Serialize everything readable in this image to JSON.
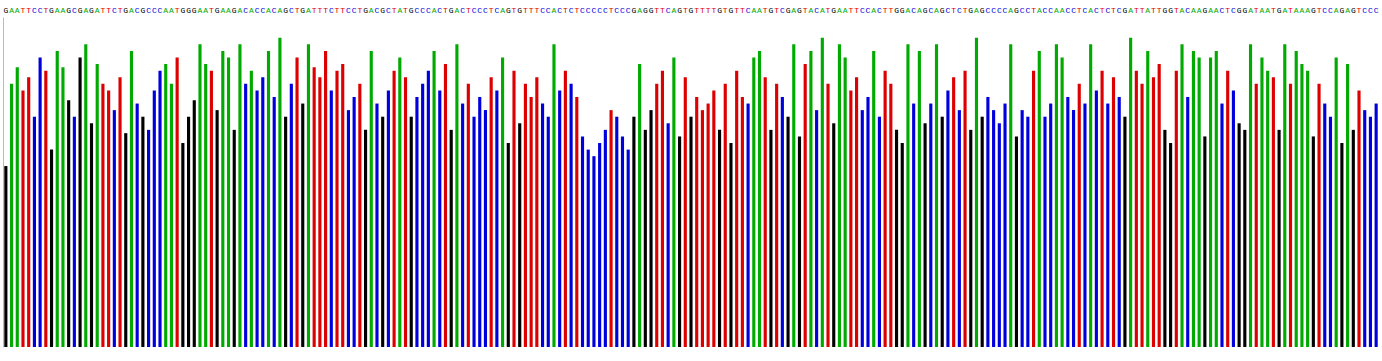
{
  "chart_data": {
    "type": "bar",
    "categories": [
      "G",
      "A",
      "A",
      "T",
      "T",
      "C",
      "C",
      "T",
      "G",
      "A",
      "A",
      "G",
      "C",
      "G",
      "A",
      "G",
      "A",
      "T",
      "T",
      "C",
      "T",
      "G",
      "A",
      "C",
      "G",
      "C",
      "C",
      "C",
      "A",
      "A",
      "T",
      "G",
      "G",
      "G",
      "A",
      "A",
      "T",
      "G",
      "A",
      "A",
      "G",
      "A",
      "C",
      "A",
      "C",
      "C",
      "A",
      "C",
      "A",
      "G",
      "C",
      "T",
      "G",
      "A",
      "T",
      "T",
      "T",
      "C",
      "T",
      "T",
      "C",
      "C",
      "T",
      "G",
      "A",
      "C",
      "G",
      "C",
      "T",
      "A",
      "T",
      "G",
      "C",
      "C",
      "C",
      "A",
      "C",
      "T",
      "G",
      "A",
      "C",
      "T",
      "C",
      "C",
      "C",
      "T",
      "C",
      "A",
      "G",
      "T",
      "G",
      "T",
      "T",
      "T",
      "C",
      "C",
      "A",
      "C",
      "T",
      "C",
      "T",
      "C",
      "C",
      "C",
      "C",
      "C",
      "T",
      "C",
      "C",
      "C",
      "G",
      "A",
      "G",
      "G",
      "T",
      "T",
      "C",
      "A",
      "G",
      "T",
      "G",
      "T",
      "T",
      "T",
      "T",
      "G",
      "T",
      "G",
      "T",
      "T",
      "C",
      "A",
      "A",
      "T",
      "G",
      "T",
      "C",
      "G",
      "A",
      "G",
      "T",
      "A",
      "C",
      "A",
      "T",
      "G",
      "A",
      "A",
      "T",
      "T",
      "C",
      "C",
      "A",
      "C",
      "T",
      "T",
      "G",
      "G",
      "A",
      "C",
      "A",
      "G",
      "C",
      "A",
      "G",
      "C",
      "T",
      "C",
      "T",
      "G",
      "A",
      "G",
      "C",
      "C",
      "C",
      "C",
      "A",
      "G",
      "C",
      "C",
      "T",
      "A",
      "C",
      "C",
      "A",
      "A",
      "C",
      "C",
      "T",
      "C",
      "A",
      "C",
      "T",
      "C",
      "T",
      "C",
      "G",
      "A",
      "T",
      "T",
      "A",
      "T",
      "T",
      "G",
      "G",
      "T",
      "A",
      "C",
      "A",
      "A",
      "G",
      "A",
      "A",
      "C",
      "T",
      "C",
      "G",
      "G",
      "A",
      "T",
      "A",
      "A",
      "T",
      "G",
      "A",
      "T",
      "A",
      "A",
      "A",
      "G",
      "T",
      "C",
      "C",
      "A",
      "G",
      "A",
      "G",
      "T",
      "C",
      "C",
      "C"
    ],
    "values": [
      55,
      80,
      85,
      78,
      82,
      70,
      88,
      84,
      60,
      90,
      85,
      75,
      70,
      88,
      92,
      68,
      86,
      80,
      78,
      72,
      82,
      65,
      90,
      74,
      70,
      66,
      78,
      84,
      86,
      80,
      88,
      62,
      70,
      75,
      92,
      86,
      84,
      72,
      90,
      88,
      66,
      92,
      80,
      84,
      78,
      82,
      90,
      76,
      94,
      70,
      80,
      88,
      74,
      92,
      85,
      82,
      90,
      78,
      84,
      86,
      72,
      76,
      80,
      66,
      90,
      74,
      70,
      78,
      84,
      88,
      82,
      70,
      76,
      80,
      84,
      90,
      78,
      86,
      66,
      92,
      74,
      80,
      70,
      76,
      72,
      82,
      78,
      88,
      62,
      84,
      68,
      80,
      76,
      82,
      74,
      70,
      92,
      78,
      84,
      80,
      76,
      64,
      60,
      58,
      62,
      66,
      72,
      70,
      64,
      60,
      70,
      86,
      66,
      72,
      80,
      84,
      68,
      88,
      64,
      82,
      70,
      76,
      72,
      74,
      78,
      66,
      80,
      62,
      84,
      76,
      74,
      88,
      90,
      82,
      66,
      80,
      76,
      70,
      92,
      64,
      86,
      90,
      72,
      94,
      80,
      68,
      92,
      88,
      78,
      82,
      72,
      76,
      90,
      70,
      84,
      80,
      66,
      62,
      92,
      74,
      90,
      68,
      74,
      92,
      70,
      78,
      82,
      72,
      84,
      66,
      94,
      70,
      76,
      72,
      68,
      74,
      92,
      64,
      72,
      70,
      84,
      90,
      70,
      74,
      92,
      88,
      76,
      72,
      80,
      74,
      92,
      78,
      84,
      74,
      82,
      76,
      70,
      94,
      84,
      80,
      90,
      82,
      86,
      66,
      62,
      84,
      92,
      76,
      90,
      88,
      64,
      88,
      90,
      74,
      84,
      78,
      68,
      66,
      92,
      80,
      88,
      84,
      82,
      66,
      92,
      80,
      90,
      86,
      84,
      64,
      80,
      74,
      70,
      88,
      62,
      86,
      66,
      78,
      72,
      70,
      74
    ],
    "colors": [
      "#000",
      "#0a0",
      "#0a0",
      "#d00",
      "#d00",
      "#00d",
      "#00d",
      "#d00",
      "#000",
      "#0a0",
      "#0a0",
      "#000",
      "#00d",
      "#000",
      "#0a0",
      "#000",
      "#0a0",
      "#d00",
      "#d00",
      "#00d",
      "#d00",
      "#000",
      "#0a0",
      "#00d",
      "#000",
      "#00d",
      "#00d",
      "#00d",
      "#0a0",
      "#0a0",
      "#d00",
      "#000",
      "#000",
      "#000",
      "#0a0",
      "#0a0",
      "#d00",
      "#000",
      "#0a0",
      "#0a0",
      "#000",
      "#0a0",
      "#00d",
      "#0a0",
      "#00d",
      "#00d",
      "#0a0",
      "#00d",
      "#0a0",
      "#000",
      "#00d",
      "#d00",
      "#000",
      "#0a0",
      "#d00",
      "#d00",
      "#d00",
      "#00d",
      "#d00",
      "#d00",
      "#00d",
      "#00d",
      "#d00",
      "#000",
      "#0a0",
      "#00d",
      "#000",
      "#00d",
      "#d00",
      "#0a0",
      "#d00",
      "#000",
      "#00d",
      "#00d",
      "#00d",
      "#0a0",
      "#00d",
      "#d00",
      "#000",
      "#0a0",
      "#00d",
      "#d00",
      "#00d",
      "#00d",
      "#00d",
      "#d00",
      "#00d",
      "#0a0",
      "#000",
      "#d00",
      "#000",
      "#d00",
      "#d00",
      "#d00",
      "#00d",
      "#00d",
      "#0a0",
      "#00d",
      "#d00",
      "#00d",
      "#d00",
      "#00d",
      "#00d",
      "#00d",
      "#00d",
      "#00d",
      "#d00",
      "#00d",
      "#00d",
      "#00d",
      "#000",
      "#0a0",
      "#000",
      "#000",
      "#d00",
      "#d00",
      "#00d",
      "#0a0",
      "#000",
      "#d00",
      "#000",
      "#d00",
      "#d00",
      "#d00",
      "#d00",
      "#000",
      "#d00",
      "#000",
      "#d00",
      "#d00",
      "#00d",
      "#0a0",
      "#0a0",
      "#d00",
      "#000",
      "#d00",
      "#00d",
      "#000",
      "#0a0",
      "#000",
      "#d00",
      "#0a0",
      "#00d",
      "#0a0",
      "#d00",
      "#000",
      "#0a0",
      "#0a0",
      "#d00",
      "#d00",
      "#00d",
      "#00d",
      "#0a0",
      "#00d",
      "#d00",
      "#d00",
      "#000",
      "#000",
      "#0a0",
      "#00d",
      "#0a0",
      "#000",
      "#00d",
      "#0a0",
      "#000",
      "#00d",
      "#d00",
      "#00d",
      "#d00",
      "#000",
      "#0a0",
      "#000",
      "#00d",
      "#00d",
      "#00d",
      "#00d",
      "#0a0",
      "#000",
      "#00d",
      "#00d",
      "#d00",
      "#0a0",
      "#00d",
      "#00d",
      "#0a0",
      "#0a0",
      "#00d",
      "#00d",
      "#d00",
      "#00d",
      "#0a0",
      "#00d",
      "#d00",
      "#00d",
      "#d00",
      "#00d",
      "#000",
      "#0a0",
      "#d00",
      "#d00",
      "#0a0",
      "#d00",
      "#d00",
      "#000",
      "#000",
      "#d00",
      "#0a0",
      "#00d",
      "#0a0",
      "#0a0",
      "#000",
      "#0a0",
      "#0a0",
      "#00d",
      "#d00",
      "#00d",
      "#000",
      "#000",
      "#0a0",
      "#d00",
      "#0a0",
      "#0a0",
      "#d00",
      "#000",
      "#0a0",
      "#d00",
      "#0a0",
      "#0a0",
      "#0a0",
      "#000",
      "#d00",
      "#00d",
      "#00d",
      "#0a0",
      "#000",
      "#0a0",
      "#000",
      "#d00",
      "#00d",
      "#00d",
      "#00d"
    ],
    "ylim": [
      0,
      100
    ],
    "tick_labels": "x",
    "grid": false
  }
}
